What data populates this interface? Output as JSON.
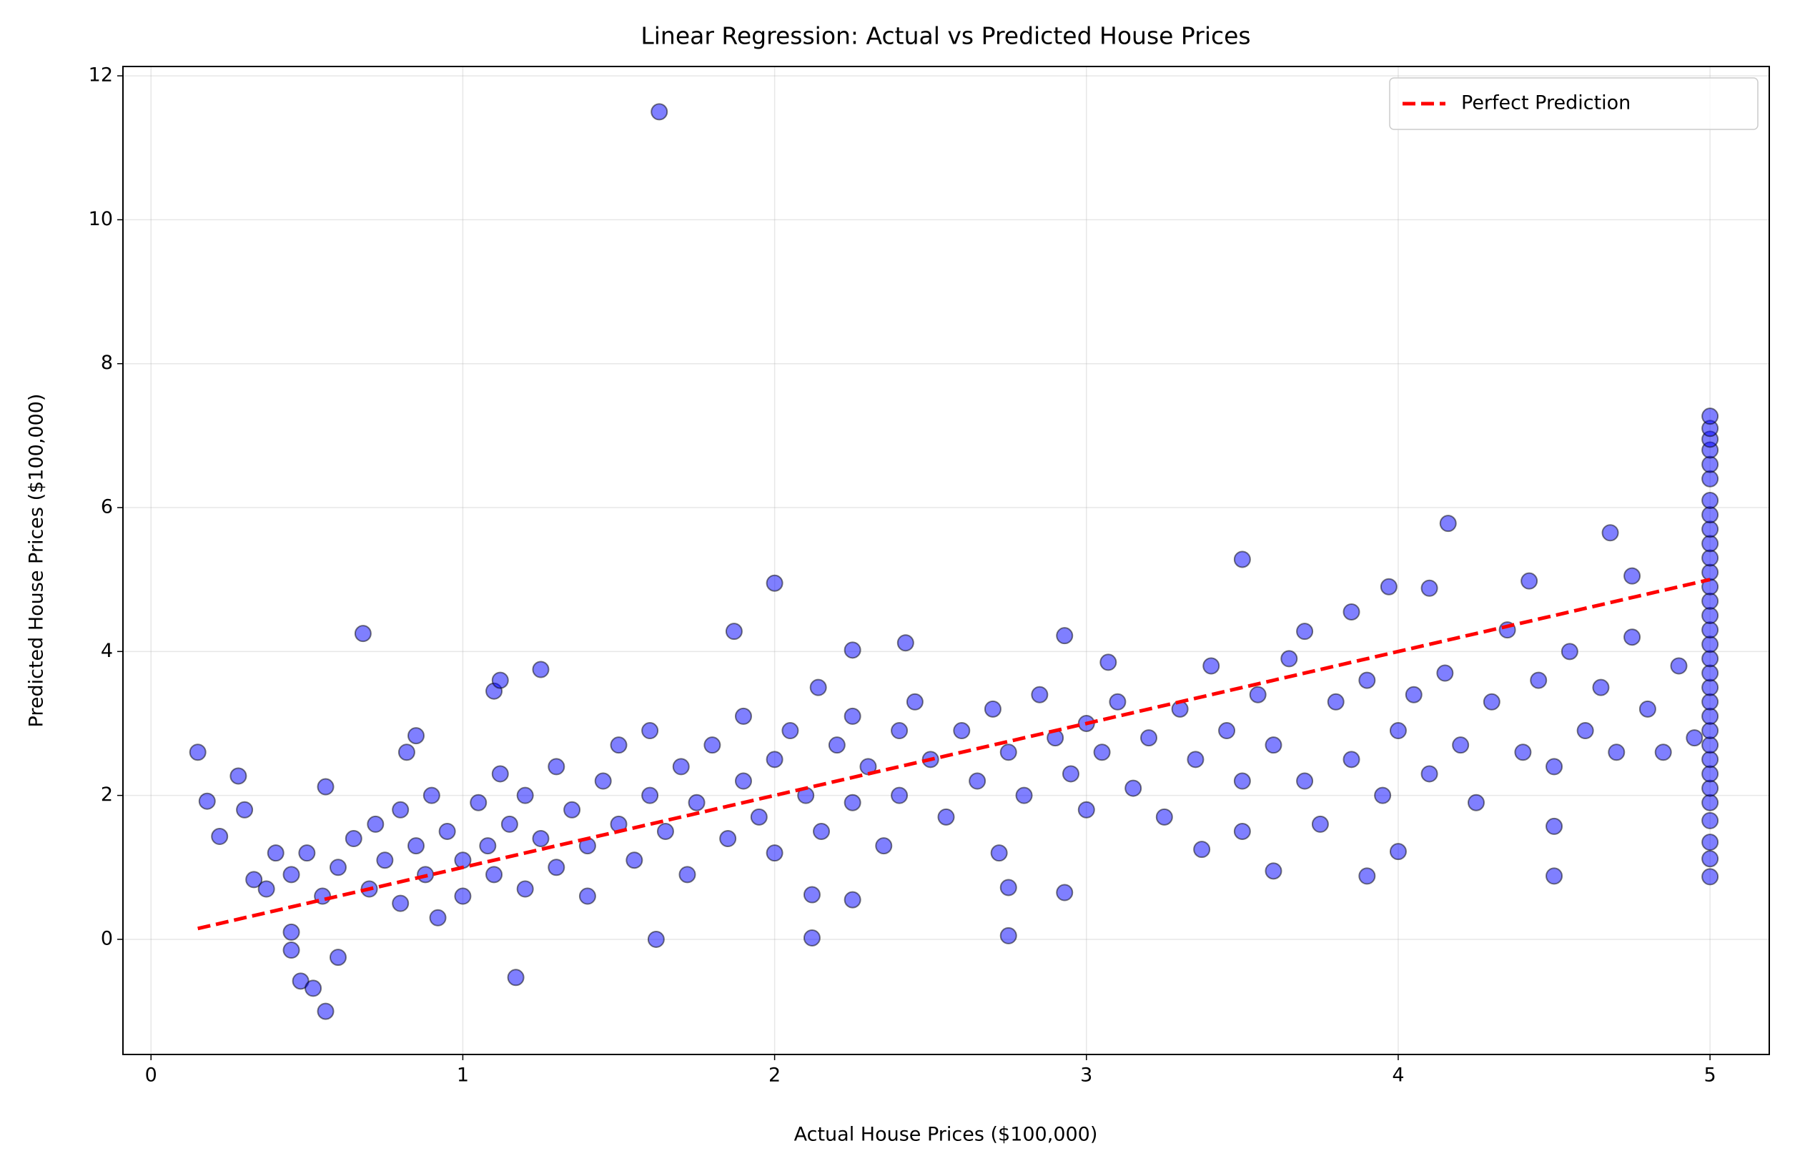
{
  "chart_data": {
    "type": "scatter",
    "title": "Linear Regression: Actual vs Predicted House Prices",
    "x_label": "Actual House Prices ($100,000)",
    "y_label": "Predicted House Prices ($100,000)",
    "xlim": [
      -0.09,
      5.19
    ],
    "ylim": [
      -1.6,
      12.13
    ],
    "xticks": [
      0,
      1,
      2,
      3,
      4,
      5
    ],
    "yticks": [
      0,
      2,
      4,
      6,
      8,
      10,
      12
    ],
    "grid": true,
    "legend": "upper right",
    "points": {
      "color": "#0000ff",
      "x": [
        1.63,
        0.15,
        0.18,
        0.22,
        0.28,
        0.3,
        0.33,
        0.37,
        0.4,
        0.45,
        0.45,
        0.48,
        0.52,
        0.56,
        0.56,
        0.6,
        0.68,
        0.82,
        0.85,
        1.1,
        1.12,
        1.17,
        1.25,
        1.62,
        1.87,
        2.0,
        2.12,
        2.12,
        2.14,
        2.25,
        2.25,
        2.42,
        2.75,
        2.75,
        2.93,
        2.93,
        3.5,
        3.6,
        3.85,
        3.9,
        3.97,
        4.0,
        4.1,
        4.16,
        4.42,
        4.5,
        4.5,
        4.68,
        4.75,
        3.07,
        3.37,
        3.7,
        0.45,
        0.5,
        0.55,
        0.6,
        0.65,
        0.7,
        0.72,
        0.75,
        0.8,
        0.8,
        0.85,
        0.88,
        0.9,
        0.92,
        0.95,
        1.0,
        1.0,
        1.05,
        1.08,
        1.1,
        1.12,
        1.15,
        1.2,
        1.2,
        1.25,
        1.3,
        1.3,
        1.35,
        1.4,
        1.4,
        1.45,
        1.5,
        1.5,
        1.55,
        1.6,
        1.6,
        1.65,
        1.7,
        1.72,
        1.75,
        1.8,
        1.85,
        1.9,
        1.9,
        1.95,
        2.0,
        2.0,
        2.05,
        2.1,
        2.15,
        2.2,
        2.25,
        2.25,
        2.3,
        2.35,
        2.4,
        2.4,
        2.45,
        2.5,
        2.55,
        2.6,
        2.65,
        2.7,
        2.72,
        2.75,
        2.8,
        2.85,
        2.9,
        2.95,
        3.0,
        3.0,
        3.05,
        3.1,
        3.15,
        3.2,
        3.25,
        3.3,
        3.35,
        3.4,
        3.45,
        3.5,
        3.5,
        3.55,
        3.6,
        3.65,
        3.7,
        3.75,
        3.8,
        3.85,
        3.9,
        3.95,
        4.0,
        4.05,
        4.1,
        4.15,
        4.2,
        4.25,
        4.3,
        4.35,
        4.4,
        4.45,
        4.5,
        4.55,
        4.6,
        4.65,
        4.7,
        4.75,
        4.8,
        4.85,
        4.9,
        4.95,
        5,
        5,
        5,
        5,
        5,
        5,
        5,
        5,
        5,
        5,
        5,
        5,
        5,
        5,
        5,
        5,
        5,
        5,
        5,
        5,
        5,
        5,
        5,
        5,
        5,
        5,
        5,
        5,
        5,
        5,
        5,
        5
      ],
      "y": [
        11.5,
        2.6,
        1.92,
        1.43,
        2.27,
        1.8,
        0.83,
        0.7,
        1.2,
        0.1,
        -0.15,
        -0.58,
        -0.68,
        -1.0,
        2.12,
        -0.25,
        4.25,
        2.6,
        2.83,
        3.45,
        3.6,
        -0.53,
        3.75,
        0.0,
        4.28,
        4.95,
        0.02,
        0.62,
        3.5,
        4.02,
        0.55,
        4.12,
        0.05,
        0.72,
        0.65,
        4.22,
        5.28,
        0.95,
        4.55,
        0.88,
        4.9,
        1.22,
        4.88,
        5.78,
        4.98,
        0.88,
        1.57,
        5.65,
        5.05,
        3.85,
        1.25,
        4.28,
        0.9,
        1.2,
        0.6,
        1.0,
        1.4,
        0.7,
        1.6,
        1.1,
        0.5,
        1.8,
        1.3,
        0.9,
        2.0,
        0.3,
        1.5,
        1.1,
        0.6,
        1.9,
        1.3,
        0.9,
        2.3,
        1.6,
        0.7,
        2.0,
        1.4,
        1.0,
        2.4,
        1.8,
        0.6,
        1.3,
        2.2,
        1.6,
        2.7,
        1.1,
        2.0,
        2.9,
        1.5,
        2.4,
        0.9,
        1.9,
        2.7,
        1.4,
        2.2,
        3.1,
        1.7,
        2.5,
        1.2,
        2.9,
        2.0,
        1.5,
        2.7,
        3.1,
        1.9,
        2.4,
        1.3,
        2.9,
        2.0,
        3.3,
        2.5,
        1.7,
        2.9,
        2.2,
        3.2,
        1.2,
        2.6,
        2.0,
        3.4,
        2.8,
        2.3,
        3.0,
        1.8,
        2.6,
        3.3,
        2.1,
        2.8,
        1.7,
        3.2,
        2.5,
        3.8,
        2.9,
        1.5,
        2.2,
        3.4,
        2.7,
        3.9,
        2.2,
        1.6,
        3.3,
        2.5,
        3.6,
        2.0,
        2.9,
        3.4,
        2.3,
        3.7,
        2.7,
        1.9,
        3.3,
        4.3,
        2.6,
        3.6,
        2.4,
        4.0,
        2.9,
        3.5,
        2.6,
        4.2,
        3.2,
        2.6,
        3.8,
        2.8,
        0.87,
        1.12,
        1.35,
        1.65,
        1.9,
        2.1,
        2.3,
        2.5,
        2.7,
        2.9,
        3.1,
        3.3,
        3.5,
        3.7,
        3.9,
        4.1,
        4.3,
        4.5,
        4.7,
        4.9,
        5.1,
        5.3,
        5.5,
        5.7,
        5.9,
        6.1,
        6.4,
        6.6,
        6.8,
        6.95,
        7.1,
        7.27
      ]
    },
    "reference_line": {
      "name": "Perfect Prediction",
      "color": "#ff0000",
      "style": "dashed",
      "x": [
        0.15,
        5.0
      ],
      "y": [
        0.15,
        5.0
      ]
    }
  }
}
